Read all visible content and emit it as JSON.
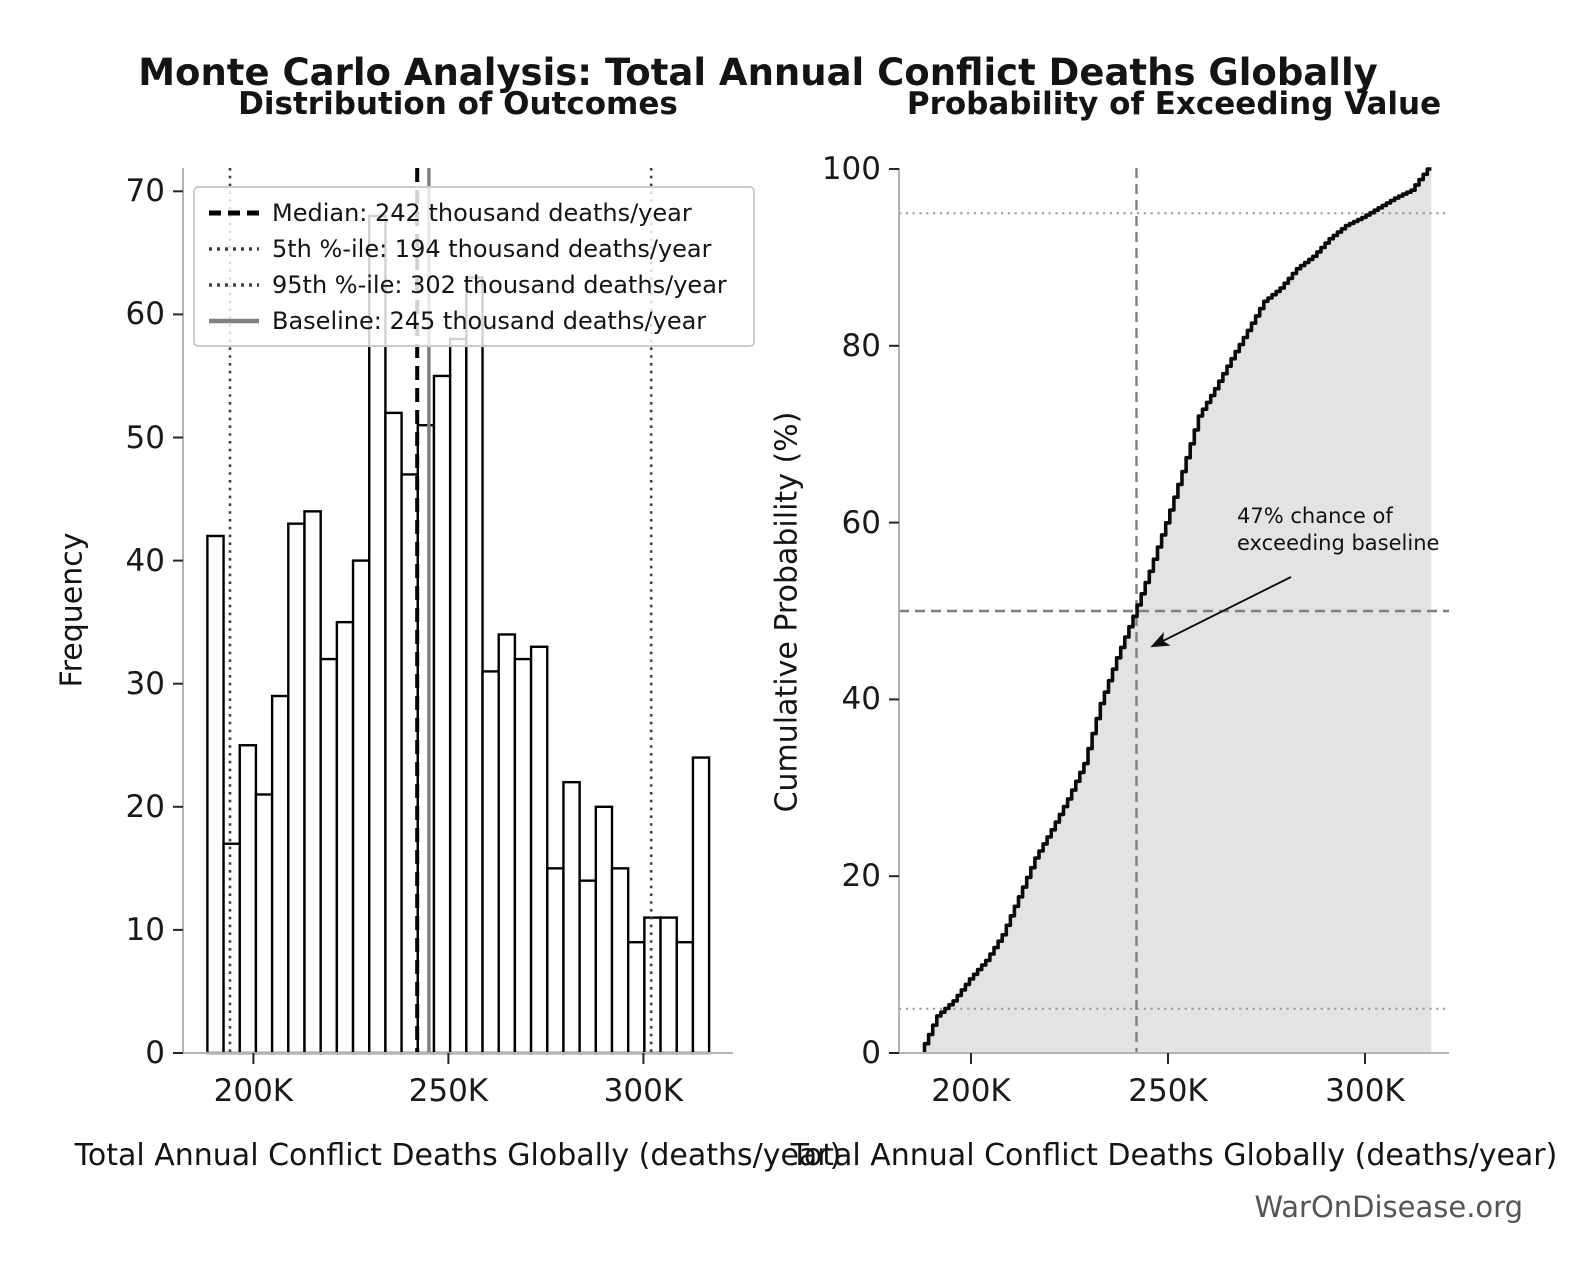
{
  "figure": {
    "title": "Monte Carlo Analysis: Total Annual Conflict Deaths Globally",
    "watermark": "WarOnDisease.org"
  },
  "chart_data": [
    {
      "id": "histogram",
      "type": "bar",
      "title": "Distribution of Outcomes",
      "xlabel": "Total Annual Conflict Deaths Globally (deaths/year)",
      "ylabel": "Frequency",
      "x_unit": "thousand deaths per year",
      "bin_start": 188.2,
      "bin_width": 4.15,
      "frequencies": [
        42,
        17,
        25,
        21,
        29,
        43,
        44,
        32,
        35,
        40,
        68,
        52,
        47,
        51,
        55,
        58,
        63,
        31,
        34,
        32,
        33,
        15,
        22,
        14,
        20,
        15,
        9,
        11,
        11,
        9,
        24
      ],
      "bar_fill": "#ffffff",
      "bar_edge": "#000000",
      "yticks": [
        0,
        10,
        20,
        30,
        40,
        50,
        60,
        70
      ],
      "xticks": [
        {
          "value": 200,
          "label": "200K"
        },
        {
          "value": 250,
          "label": "250K"
        },
        {
          "value": 300,
          "label": "300K"
        }
      ],
      "xlim": [
        181.8,
        321.5
      ],
      "ylim": [
        0,
        71.9
      ],
      "grid": false,
      "legend_position": "upper left",
      "reference_lines": [
        {
          "id": "median",
          "label": "Median: 242 thousand deaths/year",
          "value": 242,
          "style": "dashed",
          "color": "#000000"
        },
        {
          "id": "p5",
          "label": "5th %-ile: 194 thousand deaths/year",
          "value": 194,
          "style": "dotted",
          "color": "#404040"
        },
        {
          "id": "p95",
          "label": "95th %-ile: 302 thousand deaths/year",
          "value": 302,
          "style": "dotted",
          "color": "#404040"
        },
        {
          "id": "baseline",
          "label": "Baseline: 245 thousand deaths/year",
          "value": 245,
          "style": "solid",
          "color": "#808080"
        }
      ]
    },
    {
      "id": "cdf",
      "type": "line",
      "title": "Probability of Exceeding Value",
      "xlabel": "Total Annual Conflict Deaths Globally (deaths/year)",
      "ylabel": "Cumulative Probability (%)",
      "derived_from": "cumulative distribution of histogram frequencies",
      "line_color": "#0a0a0a",
      "area_fill": "rgba(128,128,128,0.22)",
      "yticks": [
        0,
        20,
        40,
        60,
        80,
        100
      ],
      "xticks": [
        {
          "value": 200,
          "label": "200K"
        },
        {
          "value": 250,
          "label": "250K"
        },
        {
          "value": 300,
          "label": "300K"
        }
      ],
      "xlim": [
        181.8,
        321.5
      ],
      "ylim": [
        0,
        100
      ],
      "reference_lines": [
        {
          "id": "median-vertical",
          "axis": "x",
          "value": 242,
          "style": "dashed",
          "color": "#808080"
        },
        {
          "id": "p50-horizontal",
          "axis": "y",
          "value": 50,
          "style": "dashed",
          "color": "#808080"
        },
        {
          "id": "p95-horizontal",
          "axis": "y",
          "value": 95,
          "style": "dotted",
          "color": "#9a9a9a"
        },
        {
          "id": "p5-horizontal",
          "axis": "y",
          "value": 5,
          "style": "dotted",
          "color": "#9a9a9a"
        }
      ],
      "annotation": {
        "line1": "47% chance of",
        "line2": "exceeding baseline",
        "exceed_probability_pct": 47
      }
    }
  ]
}
